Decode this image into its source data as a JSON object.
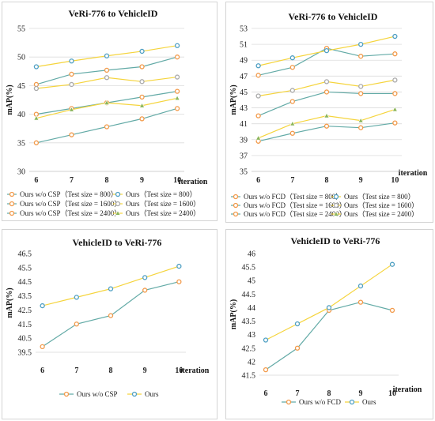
{
  "colors": {
    "orange": "#f29a4a",
    "blue": "#4e9fc3",
    "yellow": "#f5d43c",
    "gray": "#aaaaaa",
    "teal": "#62aaa6",
    "green": "#8ab55a"
  },
  "chart_data": [
    {
      "type": "line",
      "title": "VeRi-776 to VehicleID",
      "ylabel": "mAP(%)",
      "xlabel": "iteration",
      "x": [
        6,
        7,
        8,
        9,
        10
      ],
      "ylim": [
        30,
        55
      ],
      "yticks": [
        30,
        35,
        40,
        45,
        50,
        55
      ],
      "ytick_labels": [
        "30",
        "35",
        "40",
        "45",
        "50",
        "55"
      ],
      "grid": "horizontal",
      "legend_position": "bottom",
      "legend_columns": 2,
      "series": [
        {
          "name": "Ours w/o CSP（Test size = 800）",
          "values": [
            45.2,
            47.0,
            47.7,
            48.3,
            50.0
          ],
          "color": "teal",
          "marker": "circle-orange"
        },
        {
          "name": "Ours（Test size = 800）",
          "values": [
            48.3,
            49.3,
            50.2,
            51.0,
            52.0
          ],
          "color": "yellow",
          "marker": "circle-blue"
        },
        {
          "name": "Ours w/o CSP（Test size = 1600）",
          "values": [
            40.0,
            41.0,
            42.0,
            43.0,
            44.0
          ],
          "color": "teal",
          "marker": "circle-orange"
        },
        {
          "name": "Ours（Test size = 1600）",
          "values": [
            44.5,
            45.2,
            46.4,
            45.7,
            46.5
          ],
          "color": "yellow",
          "marker": "circle-gray"
        },
        {
          "name": "Ours w/o CSP（Test size = 2400）",
          "values": [
            35.0,
            36.4,
            37.8,
            39.2,
            41.0
          ],
          "color": "teal",
          "marker": "circle-orange"
        },
        {
          "name": "Ours（Test size = 2400）",
          "values": [
            39.3,
            40.8,
            42.0,
            41.5,
            42.8
          ],
          "color": "yellow",
          "marker": "triangle-green"
        }
      ]
    },
    {
      "type": "line",
      "title": "VeRi-776 to VehicleID",
      "ylabel": "mAP(%)",
      "xlabel": "iteration",
      "x": [
        6,
        7,
        8,
        9,
        10
      ],
      "ylim": [
        35,
        53
      ],
      "yticks": [
        35,
        37,
        39,
        41,
        43,
        45,
        47,
        49,
        51,
        53
      ],
      "ytick_labels": [
        "35",
        "37",
        "39",
        "41",
        "43",
        "45",
        "47",
        "49",
        "51",
        "53"
      ],
      "grid": "horizontal",
      "legend_position": "bottom",
      "legend_columns": 2,
      "series": [
        {
          "name": "Ours w/o FCD（Test size = 800）",
          "values": [
            47.1,
            48.1,
            50.5,
            49.5,
            49.8
          ],
          "color": "teal",
          "marker": "circle-orange"
        },
        {
          "name": "Ours（Test size = 800）",
          "values": [
            48.3,
            49.3,
            50.2,
            51.0,
            52.0
          ],
          "color": "yellow",
          "marker": "circle-blue"
        },
        {
          "name": "Ours w/o FCD（Test size = 1600）",
          "values": [
            42.0,
            43.8,
            45.0,
            44.8,
            44.8
          ],
          "color": "teal",
          "marker": "circle-orange"
        },
        {
          "name": "Ours（Test size = 1600）",
          "values": [
            44.5,
            45.2,
            46.3,
            45.7,
            46.5
          ],
          "color": "yellow",
          "marker": "circle-gray"
        },
        {
          "name": "Ours w/o FCD（Test size = 2400）",
          "values": [
            38.8,
            39.8,
            40.7,
            40.5,
            41.1
          ],
          "color": "teal",
          "marker": "circle-orange"
        },
        {
          "name": "Ours（Test size = 2400）",
          "values": [
            39.2,
            41.0,
            42.0,
            41.4,
            42.8
          ],
          "color": "yellow",
          "marker": "triangle-green"
        }
      ]
    },
    {
      "type": "line",
      "title": "VehicleID to VeRi-776",
      "ylabel": "mAP(%)",
      "xlabel": "iteration",
      "x": [
        6,
        7,
        8,
        9,
        10
      ],
      "ylim": [
        39.5,
        46.5
      ],
      "yticks": [
        39.5,
        40.5,
        41.5,
        42.5,
        43.5,
        44.5,
        45.5,
        46.5
      ],
      "ytick_labels": [
        "39.5",
        "40.5",
        "41.5",
        "42.5",
        "43.5",
        "44.5",
        "45.5",
        "46.5"
      ],
      "grid": "none",
      "legend_position": "bottom",
      "legend_columns": 2,
      "series": [
        {
          "name": "Ours w/o CSP",
          "values": [
            39.9,
            41.5,
            42.1,
            43.9,
            44.5
          ],
          "color": "teal",
          "marker": "circle-orange"
        },
        {
          "name": "Ours",
          "values": [
            42.8,
            43.4,
            44.0,
            44.8,
            45.6
          ],
          "color": "yellow",
          "marker": "circle-blue"
        }
      ]
    },
    {
      "type": "line",
      "title": "VehicleID to VeRi-776",
      "ylabel": "mAP(%)",
      "xlabel": "iteration",
      "x": [
        6,
        7,
        8,
        9,
        10
      ],
      "ylim": [
        41.5,
        46
      ],
      "yticks": [
        41.5,
        42,
        42.5,
        43,
        43.5,
        44,
        44.5,
        45,
        45.5,
        46
      ],
      "ytick_labels": [
        "41.5",
        "42",
        "42.5",
        "43",
        "43.5",
        "44",
        "44.5",
        "45",
        "45.5",
        "46"
      ],
      "grid": "none",
      "legend_position": "bottom",
      "legend_columns": 2,
      "series": [
        {
          "name": "Ours w/o FCD",
          "values": [
            41.7,
            42.5,
            43.9,
            44.2,
            43.9
          ],
          "color": "teal",
          "marker": "circle-orange"
        },
        {
          "name": "Ours",
          "values": [
            42.8,
            43.4,
            44.0,
            44.8,
            45.6
          ],
          "color": "yellow",
          "marker": "circle-blue"
        }
      ]
    }
  ]
}
